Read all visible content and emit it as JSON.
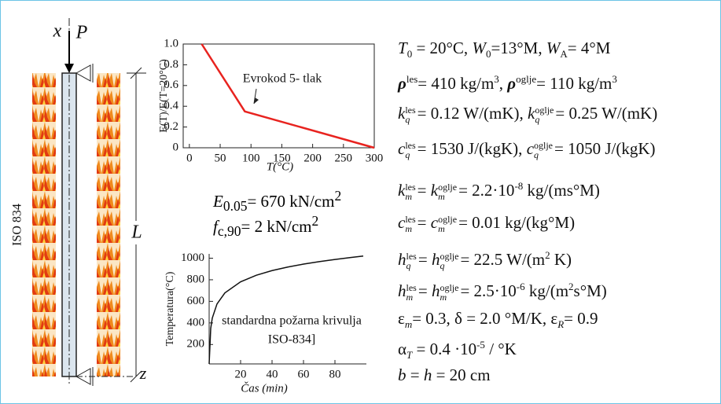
{
  "column": {
    "axis_x": "x",
    "load": "P",
    "axis_z": "z",
    "length": "L",
    "fire": "ISO 834"
  },
  "chart_data": [
    {
      "type": "line",
      "y_label": "E(T)/E(T=20°C)",
      "x_label": "T(°C)",
      "annotation": "Evrokod 5- tlak",
      "x": [
        20,
        90,
        300
      ],
      "values": [
        1,
        0.35,
        0
      ],
      "color": "#e8231f",
      "xlim": [
        -10,
        300
      ],
      "ylim": [
        0,
        1
      ],
      "xticks": [
        0,
        50,
        100,
        150,
        200,
        250,
        300
      ],
      "yticks": [
        0,
        0.2,
        0.4,
        0.6,
        0.8,
        {
          "value": 1,
          "label": "1.0"
        }
      ]
    },
    {
      "type": "line",
      "y_label": "Temperatura(°C)",
      "x_label": "Čas (min)",
      "annotation": [
        "standardna požarna krivulja",
        "ISO-834]"
      ],
      "x": [
        0,
        1,
        2,
        5,
        10,
        20,
        30,
        40,
        50,
        60,
        70,
        80,
        90,
        98
      ],
      "values": [
        20,
        349,
        445,
        576,
        678,
        781,
        842,
        885,
        918,
        945,
        968,
        988,
        1006,
        1020
      ],
      "color": "#111111",
      "xlim": [
        0,
        100
      ],
      "ylim": [
        20,
        1040
      ],
      "xticks": [
        20,
        40,
        60,
        80
      ],
      "yticks": [
        200,
        400,
        600,
        800,
        1000
      ]
    }
  ],
  "strength": [
    [
      "E",
      "0.05",
      "= 670 kN/cm",
      "2"
    ],
    [
      "f",
      "c,90",
      "= 2 kN/cm",
      "2"
    ]
  ],
  "properties": [
    [
      "T",
      "0",
      " = 20°C, ",
      "W",
      "0",
      "=13°M, ",
      "W",
      "A",
      "= 4°M"
    ],
    [
      "ρ",
      "les",
      "= 410 kg/m",
      "3",
      ", ",
      "ρ",
      "oglje",
      "= 110 kg/m",
      "3"
    ],
    [
      "k",
      "les",
      "q",
      "= 0.12 W/(mK), ",
      "k",
      "oglje",
      "q",
      "= 0.25 W/(mK)"
    ],
    [
      "c",
      "les",
      "q",
      "= 1530 J/(kgK), ",
      "c",
      "oglje",
      "q",
      "= 1050 J/(kgK)"
    ],
    [
      "k",
      "les",
      "m",
      "= ",
      "k",
      "oglje",
      "m",
      "= 2.2·10",
      "-8",
      " kg/(ms°M)"
    ],
    [
      "c",
      "les",
      "m",
      "= ",
      "c",
      "oglje",
      "m",
      "= 0.01 kg/(kg°M)"
    ],
    [
      "h",
      "les",
      "q",
      "= ",
      "h",
      "oglje",
      "q",
      "= 22.5 W/(m",
      "2",
      " K)"
    ],
    [
      "h",
      "les",
      "m",
      "= ",
      "h",
      "oglje",
      "m",
      "= 2.5·10",
      "-6",
      " kg/(m",
      "2",
      "s°M)"
    ],
    [
      "ε",
      "m",
      "= 0.3, δ = 2.0 °M/K, ε",
      "R",
      "= 0.9"
    ],
    [
      "α",
      "T",
      " = 0.4 ·10",
      "-5",
      " / °K"
    ],
    [
      "b",
      " = ",
      "h",
      " = 20 cm"
    ]
  ]
}
